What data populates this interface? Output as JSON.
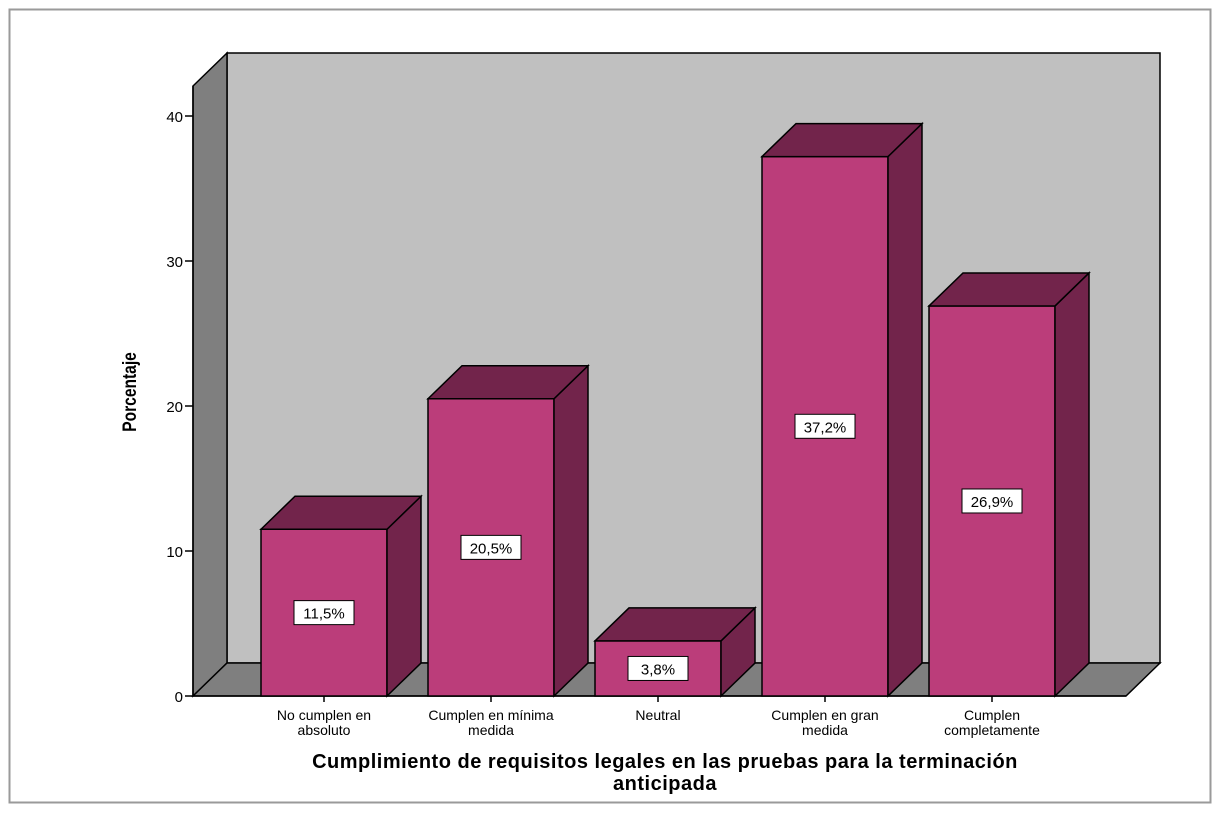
{
  "chart_data": {
    "type": "bar",
    "title": "",
    "xlabel": "Cumplimiento de requisitos legales en las pruebas para la terminación anticipada",
    "xlabel_lines": [
      "Cumplimiento de requisitos legales en las pruebas para la terminación",
      "anticipada"
    ],
    "ylabel": "Porcentaje",
    "ylim": [
      0,
      40
    ],
    "yticks": [
      "0",
      "10",
      "20",
      "30",
      "40"
    ],
    "categories": [
      [
        "No cumplen en",
        "absoluto"
      ],
      [
        "Cumplen en mínima",
        "medida"
      ],
      [
        "Neutral"
      ],
      [
        "Cumplen en gran",
        "medida"
      ],
      [
        "Cumplen",
        "completamente"
      ]
    ],
    "values": [
      11.5,
      20.5,
      3.8,
      37.2,
      26.9
    ],
    "data_labels": [
      "11,5%",
      "20,5%",
      "3,8%",
      "37,2%",
      "26,9%"
    ],
    "legend": "none",
    "grid": false,
    "style": "3d",
    "colors": {
      "bar_front": "#bb3d7a",
      "bar_side": "#72244b",
      "bar_top": "#72244b",
      "back_wall": "#c0c0c0",
      "side_wall": "#7f7f7f",
      "floor": "#7f7f7f",
      "frame_border": "#9a9a9a"
    }
  }
}
